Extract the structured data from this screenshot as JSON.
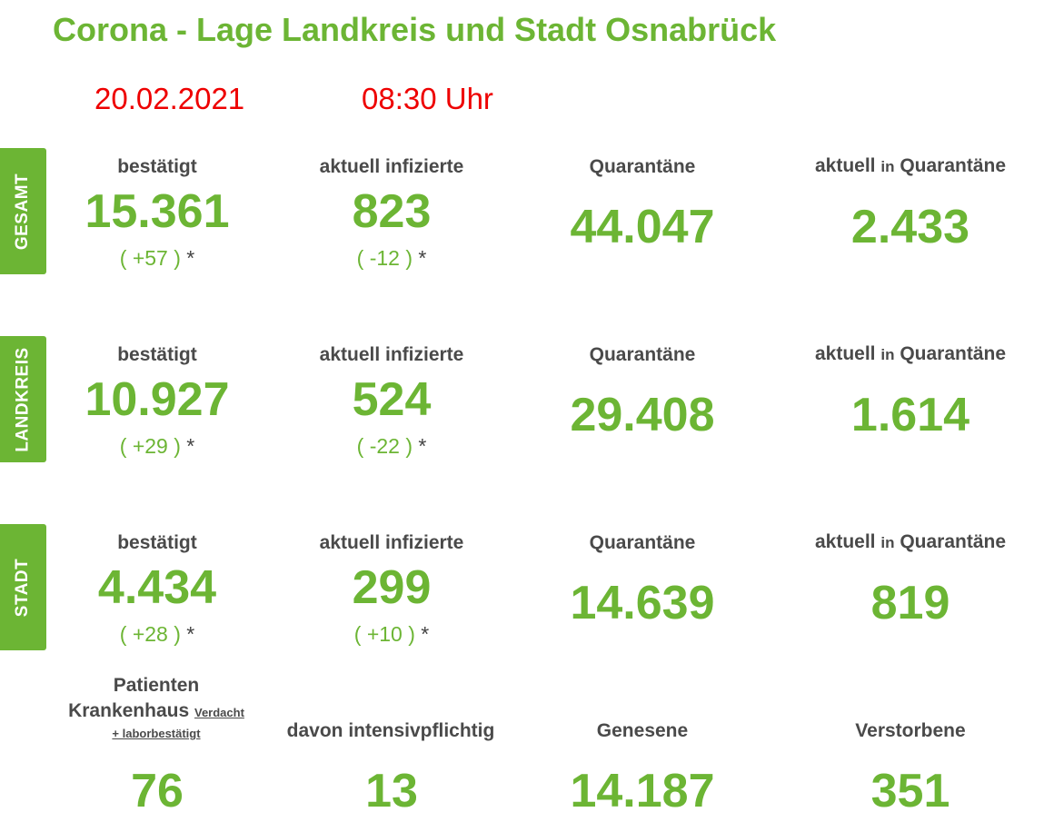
{
  "title": "Corona - Lage Landkreis und Stadt Osnabrück",
  "date": "20.02.2021",
  "time": "08:30 Uhr",
  "labels": {
    "confirmed": "bestätigt",
    "active": "aktuell infizierte",
    "quarantine": "Quarantäne",
    "current_pre": "aktuell",
    "current_in": "in",
    "current_post": "Quarantäne"
  },
  "sections": [
    {
      "tab": "GESAMT",
      "confirmed": "15.361",
      "confirmed_change": "( +57 )",
      "active": "823",
      "active_change": "( -12 )",
      "quarantine": "44.047",
      "current_quarantine": "2.433"
    },
    {
      "tab": "LANDKREIS",
      "confirmed": "10.927",
      "confirmed_change": "( +29 )",
      "active": "524",
      "active_change": "( -22 )",
      "quarantine": "29.408",
      "current_quarantine": "1.614"
    },
    {
      "tab": "STADT",
      "confirmed": "4.434",
      "confirmed_change": "( +28 )",
      "active": "299",
      "active_change": "( +10 )",
      "quarantine": "14.639",
      "current_quarantine": "819"
    }
  ],
  "star": "*",
  "bottom": {
    "hospital_line1": "Patienten",
    "hospital_line2": "Krankenhaus",
    "hospital_sub1": "Verdacht",
    "hospital_sub2": "+ laborbestätigt",
    "intensive_label": "davon intensivpflichtig",
    "recovered_label": "Genesene",
    "deceased_label": "Verstorbene",
    "hospital": "76",
    "intensive": "13",
    "recovered": "14.187",
    "deceased": "351"
  }
}
